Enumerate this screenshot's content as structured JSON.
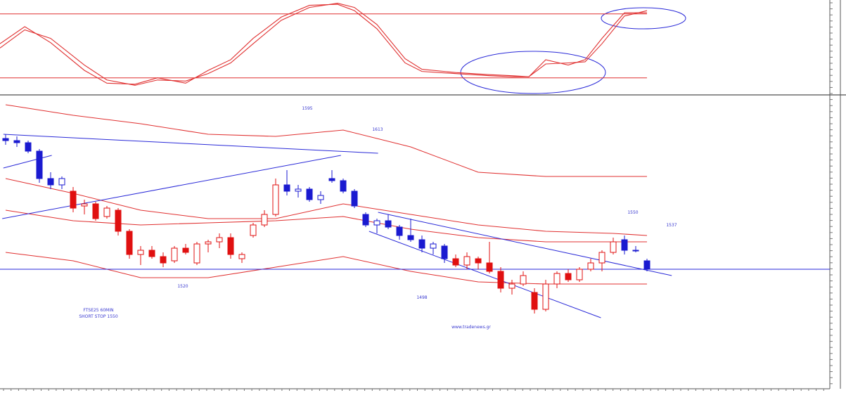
{
  "chart_data": [
    {
      "type": "oscillator",
      "ylim": [
        4,
        93
      ],
      "levels": [
        80,
        20
      ],
      "level_color": "#e03030",
      "x": [
        -0.5,
        1.7,
        4,
        7,
        9,
        11.5,
        13.5,
        16,
        18,
        20,
        22,
        24.5,
        27,
        29.5,
        31,
        33,
        35.5,
        37,
        40,
        43,
        45,
        46.5,
        48,
        50,
        51.5,
        53,
        55,
        57
      ],
      "series": [
        {
          "color": "#e03030",
          "values": [
            52,
            68,
            53,
            27,
            15,
            14,
            20,
            15,
            27,
            37,
            57,
            77,
            88,
            89,
            83,
            66,
            34,
            26,
            24,
            22,
            21,
            21,
            37,
            32,
            37,
            57,
            81,
            81
          ]
        },
        {
          "color": "#e03030",
          "values": [
            48,
            65,
            57,
            32,
            18,
            13,
            18,
            17,
            24,
            34,
            52,
            74,
            86,
            90,
            86,
            70,
            38,
            28,
            25,
            23,
            22,
            21,
            33,
            34,
            35,
            52,
            78,
            83
          ]
        }
      ]
    },
    {
      "type": "candlestick",
      "ylim": [
        1462,
        1600
      ],
      "open": [
        1581,
        1580,
        1579,
        1575,
        1562,
        1559,
        1556,
        1549,
        1550,
        1544,
        1547,
        1537,
        1526,
        1528,
        1525,
        1523,
        1529,
        1522,
        1531,
        1532,
        1534,
        1524,
        1535,
        1540,
        1545,
        1559,
        1556,
        1557,
        1552,
        1562,
        1561,
        1556,
        1545,
        1540,
        1542,
        1539,
        1535,
        1533,
        1529,
        1530,
        1524,
        1521,
        1524,
        1522,
        1518,
        1510,
        1512,
        1508,
        1500,
        1512,
        1517,
        1514,
        1519,
        1522,
        1527,
        1533,
        1528,
        1523
      ],
      "high": [
        1583,
        1582,
        1580,
        1576,
        1565,
        1563,
        1558,
        1552,
        1551,
        1549,
        1548,
        1538,
        1530,
        1530,
        1527,
        1530,
        1531,
        1532,
        1533,
        1536,
        1536,
        1527,
        1541,
        1547,
        1562,
        1566,
        1559,
        1558,
        1556,
        1566,
        1562,
        1557,
        1546,
        1543,
        1545,
        1540,
        1543,
        1535,
        1532,
        1531,
        1526,
        1527,
        1525,
        1532,
        1520,
        1514,
        1518,
        1510,
        1514,
        1518,
        1519,
        1520,
        1524,
        1528,
        1534,
        1535,
        1530,
        1524
      ],
      "low": [
        1578,
        1577,
        1574,
        1560,
        1557,
        1557,
        1546,
        1545,
        1542,
        1543,
        1535,
        1524,
        1521,
        1524,
        1520,
        1522,
        1526,
        1521,
        1527,
        1529,
        1524,
        1522,
        1534,
        1539,
        1544,
        1554,
        1553,
        1551,
        1550,
        1560,
        1555,
        1548,
        1539,
        1536,
        1538,
        1533,
        1532,
        1527,
        1526,
        1522,
        1520,
        1519,
        1519,
        1517,
        1508,
        1507,
        1511,
        1498,
        1499,
        1510,
        1513,
        1513,
        1518,
        1518,
        1526,
        1526,
        1527,
        1518
      ],
      "close": [
        1580,
        1579,
        1575,
        1562,
        1559,
        1562,
        1548,
        1550,
        1543,
        1548,
        1537,
        1526,
        1528,
        1525,
        1522,
        1529,
        1527,
        1531,
        1532,
        1534,
        1526,
        1526,
        1540,
        1545,
        1559,
        1556,
        1557,
        1552,
        1554,
        1561,
        1556,
        1549,
        1540,
        1542,
        1539,
        1535,
        1533,
        1529,
        1531,
        1524,
        1521,
        1525,
        1522,
        1518,
        1510,
        1512,
        1516,
        1500,
        1512,
        1517,
        1514,
        1519,
        1522,
        1527,
        1532,
        1528,
        1528,
        1519
      ],
      "colors": [
        "#1a1ad0",
        "#1a1ad0",
        "#1a1ad0",
        "#1a1ad0",
        "#1a1ad0",
        "#1a1ad0",
        "#e01010",
        "#e01010",
        "#e01010",
        "#e01010",
        "#e01010",
        "#e01010",
        "#e01010",
        "#e01010",
        "#e01010",
        "#e01010",
        "#e01010",
        "#e01010",
        "#e01010",
        "#e01010",
        "#e01010",
        "#e01010",
        "#e01010",
        "#e01010",
        "#e01010",
        "#1a1ad0",
        "#1a1ad0",
        "#1a1ad0",
        "#1a1ad0",
        "#1a1ad0",
        "#1a1ad0",
        "#1a1ad0",
        "#1a1ad0",
        "#1a1ad0",
        "#1a1ad0",
        "#1a1ad0",
        "#1a1ad0",
        "#1a1ad0",
        "#1a1ad0",
        "#1a1ad0",
        "#e01010",
        "#e01010",
        "#e01010",
        "#e01010",
        "#e01010",
        "#e01010",
        "#e01010",
        "#e01010",
        "#e01010",
        "#e01010",
        "#e01010",
        "#e01010",
        "#e01010",
        "#e01010",
        "#e01010",
        "#1a1ad0",
        "#1a1ad0",
        "#1a1ad0"
      ],
      "band_color": "#e03030",
      "bands_x": [
        0,
        6,
        12,
        18,
        24,
        30,
        36,
        42,
        48,
        54,
        57
      ],
      "bands": [
        {
          "values": [
            1597,
            1592,
            1588,
            1583,
            1582,
            1585,
            1577,
            1565,
            1563,
            1563,
            1563
          ]
        },
        {
          "values": [
            1562,
            1555,
            1547,
            1543,
            1543,
            1550,
            1545,
            1540,
            1537,
            1536,
            1535
          ]
        },
        {
          "values": [
            1547,
            1542,
            1540,
            1541,
            1542,
            1544,
            1538,
            1534,
            1532,
            1532,
            1532
          ]
        },
        {
          "values": [
            1527,
            1523,
            1515,
            1515,
            1520,
            1525,
            1518,
            1513,
            1512,
            1512,
            1512
          ]
        }
      ],
      "trend_color": "#2a2ad8",
      "trendlines": [
        {
          "x": [
            -0.2,
            33.1
          ],
          "y": [
            1583,
            1574
          ]
        },
        {
          "x": [
            -0.2,
            4.1
          ],
          "y": [
            1567,
            1573
          ]
        },
        {
          "x": [
            -0.3,
            29.8
          ],
          "y": [
            1543,
            1573
          ]
        },
        {
          "x": [
            33.1,
            59.2
          ],
          "y": [
            1546,
            1516
          ]
        },
        {
          "x": [
            32.3,
            52.9
          ],
          "y": [
            1537,
            1496
          ]
        }
      ],
      "hline": 1519,
      "annotations": [
        "1595",
        "1613",
        "1550",
        "1537",
        "1520",
        "1498",
        "FTSE25 60MIN",
        "SHORT STOP 1550",
        "www.tradenews.gr"
      ]
    }
  ]
}
